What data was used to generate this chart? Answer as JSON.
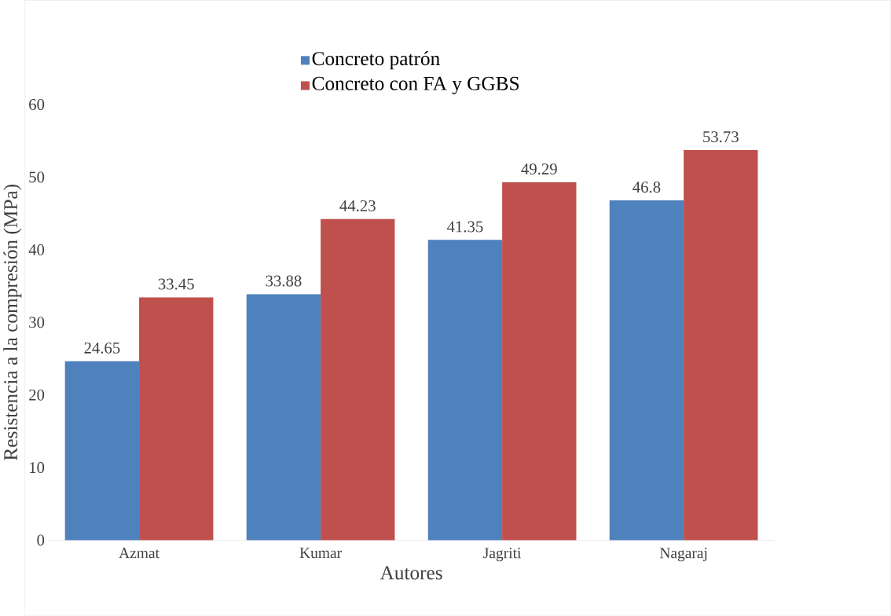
{
  "chart_data": {
    "type": "bar",
    "xlabel": "Autores",
    "ylabel": "Resistencia a la compresión (MPa)",
    "categories": [
      "Azmat",
      "Kumar",
      "Jagriti",
      "Nagaraj"
    ],
    "series": [
      {
        "name": "Concreto patrón",
        "color": "#4f81bd",
        "values": [
          24.65,
          33.88,
          41.35,
          46.8
        ]
      },
      {
        "name": "Concreto con FA y GGBS",
        "color": "#c0504d",
        "values": [
          33.45,
          44.23,
          49.29,
          53.73
        ]
      }
    ],
    "ylim": [
      0,
      60
    ],
    "yticks": [
      0,
      10,
      20,
      30,
      40,
      50,
      60
    ],
    "data_labels": true,
    "legend": "top"
  }
}
